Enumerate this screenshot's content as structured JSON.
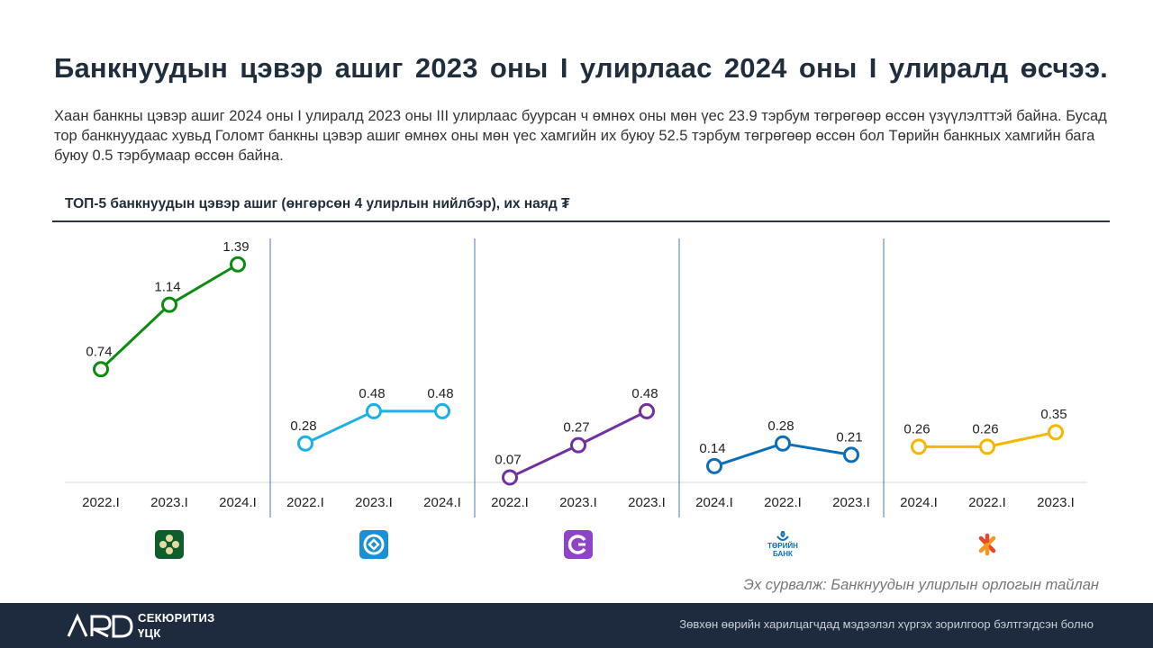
{
  "title": "Банкнуудын цэвэр ашиг 2023 оны I улирлаас 2024 оны I улиралд өсчээ.",
  "description": "Хаан банкны цэвэр ашиг 2024 оны I улиралд 2023 оны III улирлаас буурсан ч өмнөх оны мөн үес 23.9 тэрбум төгрөгөөр өссөн үзүүлэлттэй байна. Бусад тор банкнуудаас хувьд Голомт банкны цэвэр ашиг өмнөх оны мөн үес хамгийн их буюу 52.5 тэрбум төгрөгөөр өссөн бол Төрийн банкных хамгийн бага буюу 0.5 тэрбумаар өссөн байна.",
  "chart_title": "ТОП-5 банкнуудын цэвэр ашиг (өнгөрсөн 4 улирлын нийлбэр), их наяд ₮",
  "chart_data": {
    "type": "line",
    "title": "ТОП-5 банкнуудын цэвэр ашиг (өнгөрсөн 4 улирлын нийлбэр), их наяд ₮",
    "unit": "их наяд ₮",
    "ylim": [
      0,
      1.45
    ],
    "grid": false,
    "panels": [
      {
        "name": "Хаан банк",
        "color": "#0b8c10",
        "logo": "khan-bank-logo",
        "logo_bg": "#0d5e2c",
        "categories": [
          "2022.I",
          "2023.I",
          "2024.I"
        ],
        "values": [
          0.74,
          1.14,
          1.39
        ],
        "labels": [
          "0.74",
          "1.14",
          "1.39"
        ]
      },
      {
        "name": "Голомт банк",
        "color": "#1ab0e8",
        "logo": "golomt-bank-logo",
        "logo_bg": "#1a8fd6",
        "categories": [
          "2022.I",
          "2023.I",
          "2024.I"
        ],
        "values": [
          0.28,
          0.48,
          0.48
        ],
        "labels": [
          "0.28",
          "0.48",
          "0.48"
        ]
      },
      {
        "name": "Худалдаа хөгжлийн банк",
        "color": "#7030a0",
        "logo": "tdb-logo",
        "logo_bg": "#8e44c4",
        "categories": [
          "2022.I",
          "2023.I",
          "2023.I"
        ],
        "values": [
          0.07,
          0.27,
          0.48
        ],
        "labels": [
          "0.07",
          "0.27",
          "0.48"
        ]
      },
      {
        "name": "Төрийн банк",
        "color": "#0b6fb8",
        "logo": "state-bank-logo",
        "logo_bg": "#ffffff",
        "logo_text": "ТӨРИЙН\nБАНК",
        "categories": [
          "2024.I",
          "2022.I",
          "2023.I"
        ],
        "values": [
          0.14,
          0.28,
          0.21
        ],
        "labels": [
          "0.14",
          "0.28",
          "0.21"
        ]
      },
      {
        "name": "Хас банк",
        "color": "#f5b800",
        "logo": "xac-bank-logo",
        "logo_bg": "#ffffff",
        "categories": [
          "2024.I",
          "2022.I",
          "2023.I"
        ],
        "values": [
          0.26,
          0.26,
          0.35
        ],
        "labels": [
          "0.26",
          "0.26",
          "0.35"
        ]
      }
    ]
  },
  "source": "Эх сурвалж: Банкнуудын улирлын орлогын тайлан",
  "footer": {
    "brand": "ARD",
    "company_line1": "СЕКЮРИТИЗ",
    "company_line2": "ҮЦК",
    "note": "Зөвхөн өөрийн харилцагчдад мэдээлэл хүргэх зорилгоор бэлтгэгдсэн болно"
  }
}
